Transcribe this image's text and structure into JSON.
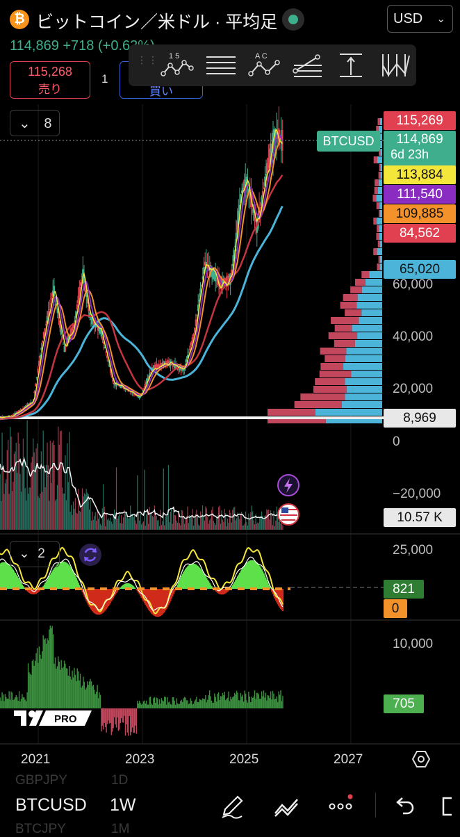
{
  "header": {
    "logo_glyph": "₿",
    "title": "ビットコイン／米ドル · 平均足",
    "currency": "USD",
    "last": "114,869",
    "change": "+718",
    "change_pct": "(+0.63%)",
    "sell_price": "115,268",
    "sell_label": "売り",
    "spread": "1",
    "buy_label": "買い"
  },
  "toolbar": {
    "tools": [
      "xabcd-pattern-icon",
      "parallel-channel-icon",
      "abcd-pattern-icon",
      "fib-retracement-icon",
      "price-range-icon",
      "elliott-wave-icon"
    ],
    "label_15": "1   5",
    "label_ac": "A   C"
  },
  "indicator_toggle": {
    "count": "8"
  },
  "osc_toggle": {
    "count": "2"
  },
  "price_labels": {
    "high": {
      "text": "115,269",
      "color": "#e0404f"
    },
    "last": {
      "text": "114,869",
      "countdown": "6d 23h",
      "color": "#3fae8c"
    },
    "ma1": {
      "text": "113,884",
      "color": "#f5e63c"
    },
    "ma2": {
      "text": "111,540",
      "color": "#8a2bc2"
    },
    "ma3": {
      "text": "109,885",
      "color": "#f3922b"
    },
    "ma4": {
      "text": "84,562",
      "color": "#e0404f"
    },
    "ma5": {
      "text": "65,020",
      "color": "#4bb4d8"
    },
    "hline": {
      "text": "8,969",
      "color": "#e8e8e8"
    },
    "volume": {
      "text": "10.57 K",
      "color": "#e8e8e8"
    },
    "osc1": {
      "text": "821",
      "color": "#2e7d32"
    },
    "osc2": {
      "text": "0",
      "color": "#f3922b"
    },
    "osc3": {
      "text": "705",
      "color": "#4caf50"
    }
  },
  "symbol_tag": "BTCUSD",
  "y_axis_labels": [
    "60,000",
    "40,000",
    "20,000",
    "0",
    "−20,000",
    "25,000",
    "10,000"
  ],
  "x_axis_labels": [
    "2021",
    "2023",
    "2025",
    "2027"
  ],
  "bottom": {
    "symbol": "BTCUSD",
    "interval": "1W",
    "ghost_prev_symbol": "GBPJPY",
    "ghost_prev_interval": "1D",
    "ghost_next_symbol": "BTCJPY",
    "ghost_next_interval": "1M",
    "logo_text": "PRO"
  },
  "chart_data": {
    "type": "line",
    "title": "ビットコイン／米ドル · 平均足",
    "interval": "1W",
    "price_scale": {
      "ticks": [
        20000,
        40000,
        60000
      ],
      "shown_max": 115269
    },
    "x_ticks": [
      "2021",
      "2023",
      "2025",
      "2027"
    ],
    "price_series": {
      "x": [
        2020.0,
        2020.5,
        2020.9,
        2021.1,
        2021.3,
        2021.5,
        2021.7,
        2021.85,
        2022.0,
        2022.2,
        2022.45,
        2022.7,
        2022.95,
        2023.2,
        2023.5,
        2023.8,
        2024.0,
        2024.2,
        2024.5,
        2024.7,
        2024.9,
        2025.0,
        2025.2,
        2025.4,
        2025.55,
        2025.7
      ],
      "y": [
        8000,
        9500,
        15000,
        40000,
        58000,
        35000,
        45000,
        65000,
        47000,
        42000,
        22000,
        20000,
        16500,
        28000,
        30000,
        27000,
        42000,
        68000,
        60000,
        62000,
        95000,
        100000,
        82000,
        105000,
        118000,
        114869
      ]
    },
    "moving_averages": [
      {
        "color": "#f5e63c",
        "last": 113884
      },
      {
        "color": "#8a2bc2",
        "last": 111540
      },
      {
        "color": "#f3922b",
        "last": 109885
      },
      {
        "color": "#e0404f",
        "last": 84562
      },
      {
        "color": "#4bb4d8",
        "last": 65020
      }
    ],
    "horizontal_line": 8969,
    "volume_last": "10.57 K",
    "oscillator_last": [
      821,
      0
    ],
    "histogram_last": 705
  }
}
